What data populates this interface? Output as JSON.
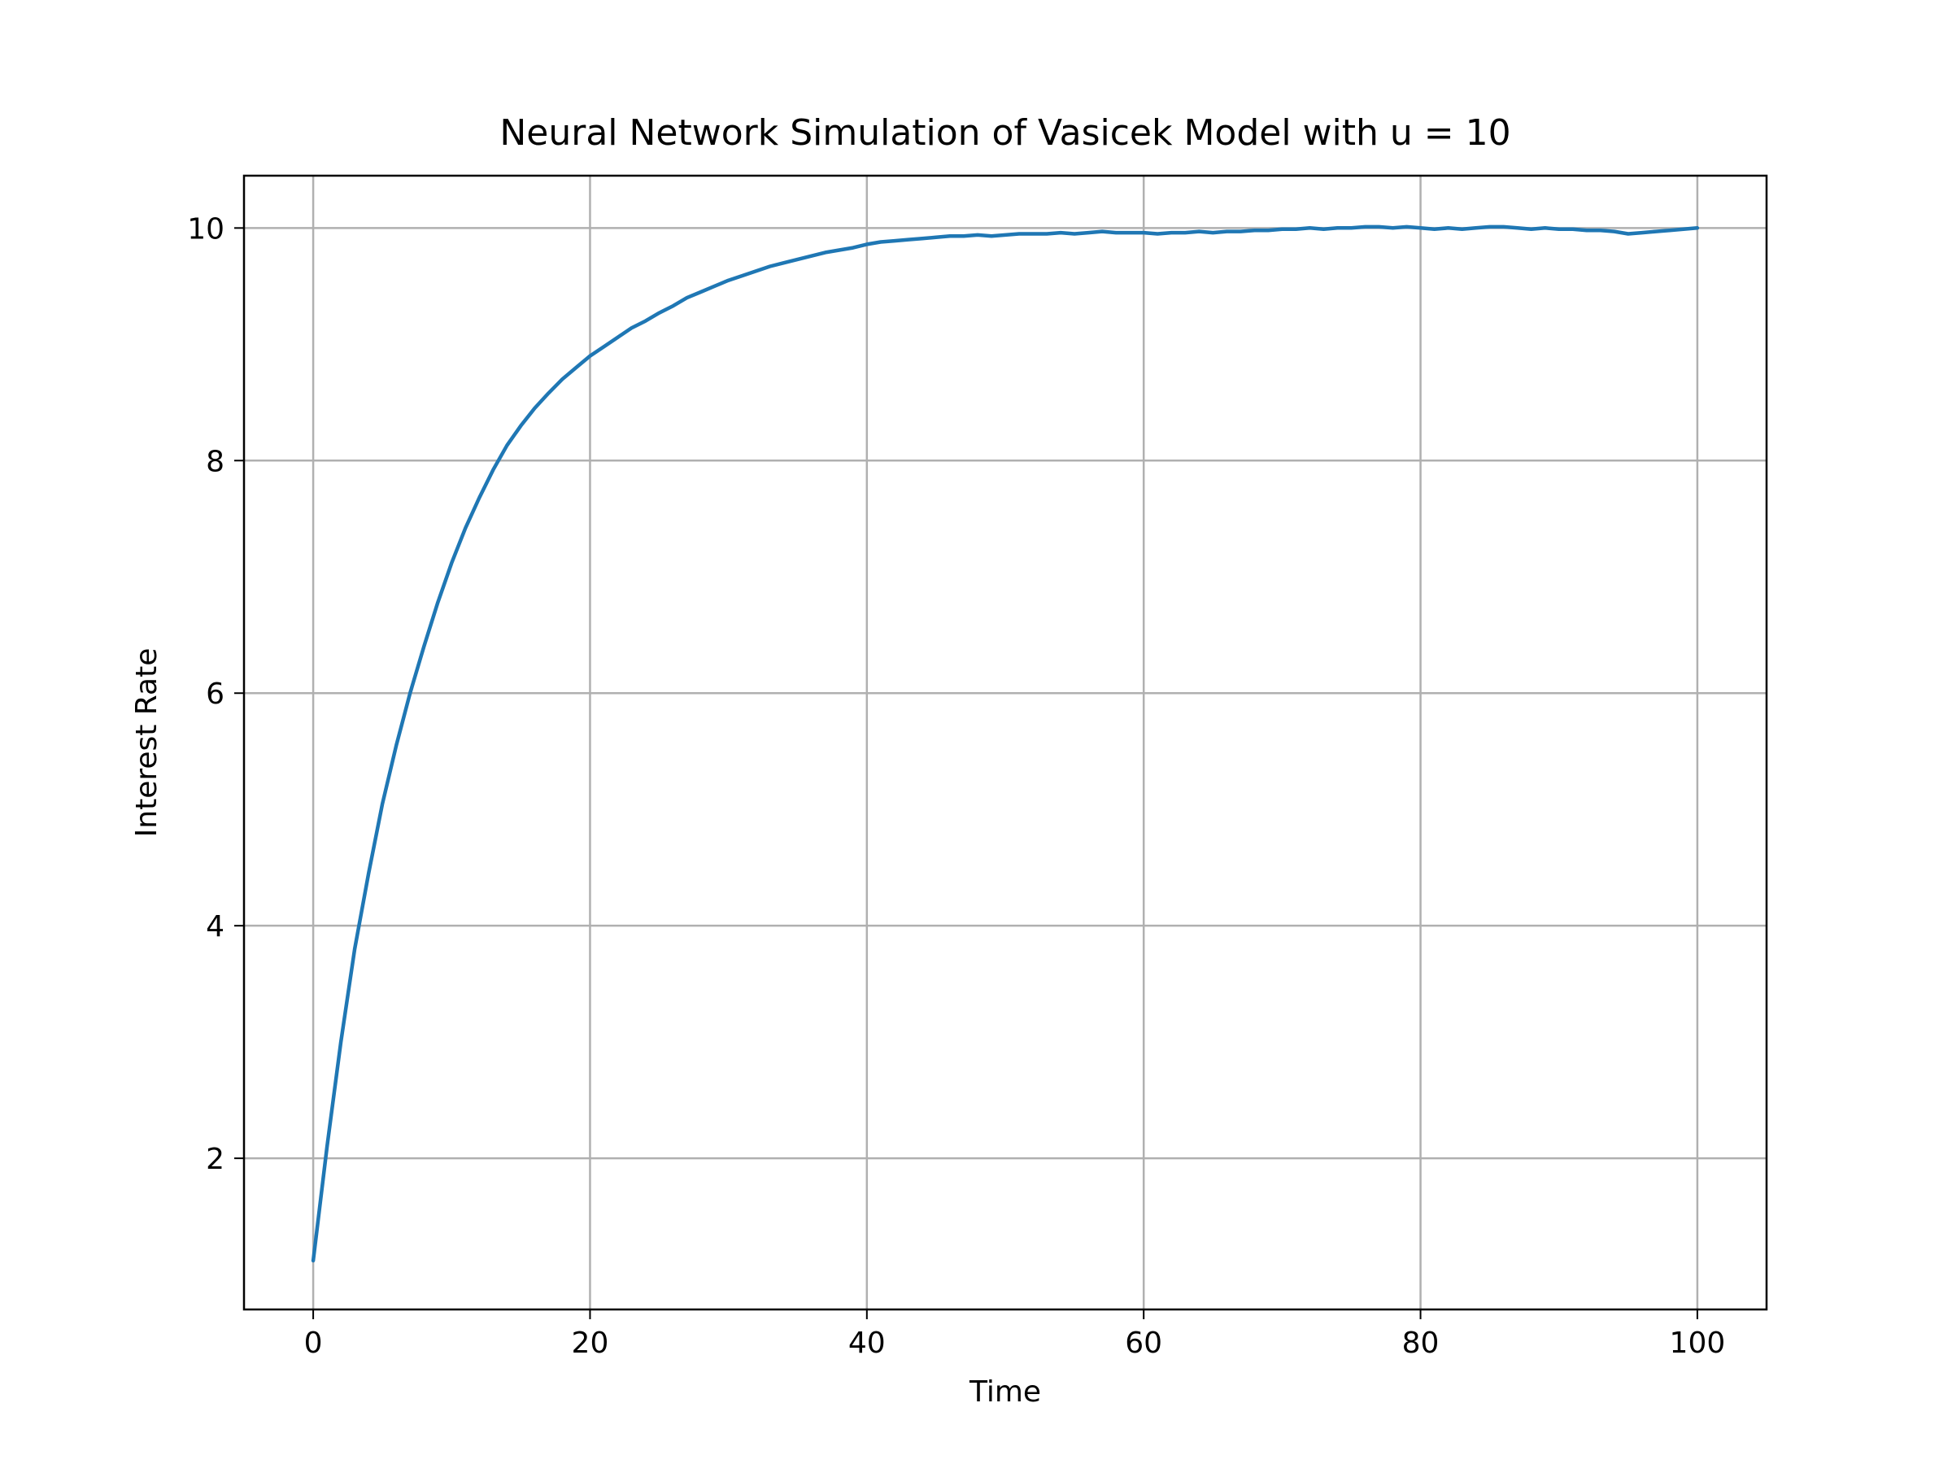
{
  "chart_data": {
    "type": "line",
    "title": "Neural Network Simulation of Vasicek Model with u = 10",
    "xlabel": "Time",
    "ylabel": "Interest Rate",
    "xlim": [
      -5,
      105
    ],
    "ylim": [
      0.7,
      10.45
    ],
    "x_ticks": [
      0,
      20,
      40,
      60,
      80,
      100
    ],
    "y_ticks": [
      2,
      4,
      6,
      8,
      10
    ],
    "grid": true,
    "legend": "none",
    "series": [
      {
        "color": "#1f77b4",
        "x": [
          0,
          1,
          2,
          3,
          4,
          5,
          6,
          7,
          8,
          9,
          10,
          11,
          12,
          13,
          14,
          15,
          16,
          17,
          18,
          19,
          20,
          21,
          22,
          23,
          24,
          25,
          26,
          27,
          28,
          29,
          30,
          31,
          32,
          33,
          34,
          35,
          36,
          37,
          38,
          39,
          40,
          41,
          42,
          43,
          44,
          45,
          46,
          47,
          48,
          49,
          50,
          51,
          52,
          53,
          54,
          55,
          56,
          57,
          58,
          59,
          60,
          61,
          62,
          63,
          64,
          65,
          66,
          67,
          68,
          69,
          70,
          71,
          72,
          73,
          74,
          75,
          76,
          77,
          78,
          79,
          80,
          81,
          82,
          83,
          84,
          85,
          86,
          87,
          88,
          89,
          90,
          91,
          92,
          93,
          94,
          95,
          96,
          97,
          98,
          99,
          100
        ],
        "y": [
          1.12,
          2.1,
          3.0,
          3.8,
          4.45,
          5.05,
          5.55,
          6.0,
          6.4,
          6.78,
          7.12,
          7.42,
          7.68,
          7.92,
          8.13,
          8.3,
          8.45,
          8.58,
          8.7,
          8.8,
          8.9,
          8.98,
          9.06,
          9.14,
          9.2,
          9.27,
          9.33,
          9.4,
          9.45,
          9.5,
          9.55,
          9.59,
          9.63,
          9.67,
          9.7,
          9.73,
          9.76,
          9.79,
          9.81,
          9.83,
          9.86,
          9.88,
          9.89,
          9.9,
          9.91,
          9.92,
          9.93,
          9.93,
          9.94,
          9.93,
          9.94,
          9.95,
          9.95,
          9.95,
          9.96,
          9.95,
          9.96,
          9.97,
          9.96,
          9.96,
          9.96,
          9.95,
          9.96,
          9.96,
          9.97,
          9.96,
          9.97,
          9.97,
          9.98,
          9.98,
          9.99,
          9.99,
          10.0,
          9.99,
          10.0,
          10.0,
          10.01,
          10.01,
          10.0,
          10.01,
          10.0,
          9.99,
          10.0,
          9.99,
          10.0,
          10.01,
          10.01,
          10.0,
          9.99,
          10.0,
          9.99,
          9.99,
          9.98,
          9.98,
          9.97,
          9.95,
          9.96,
          9.97,
          9.98,
          9.99,
          10.0
        ]
      }
    ]
  }
}
